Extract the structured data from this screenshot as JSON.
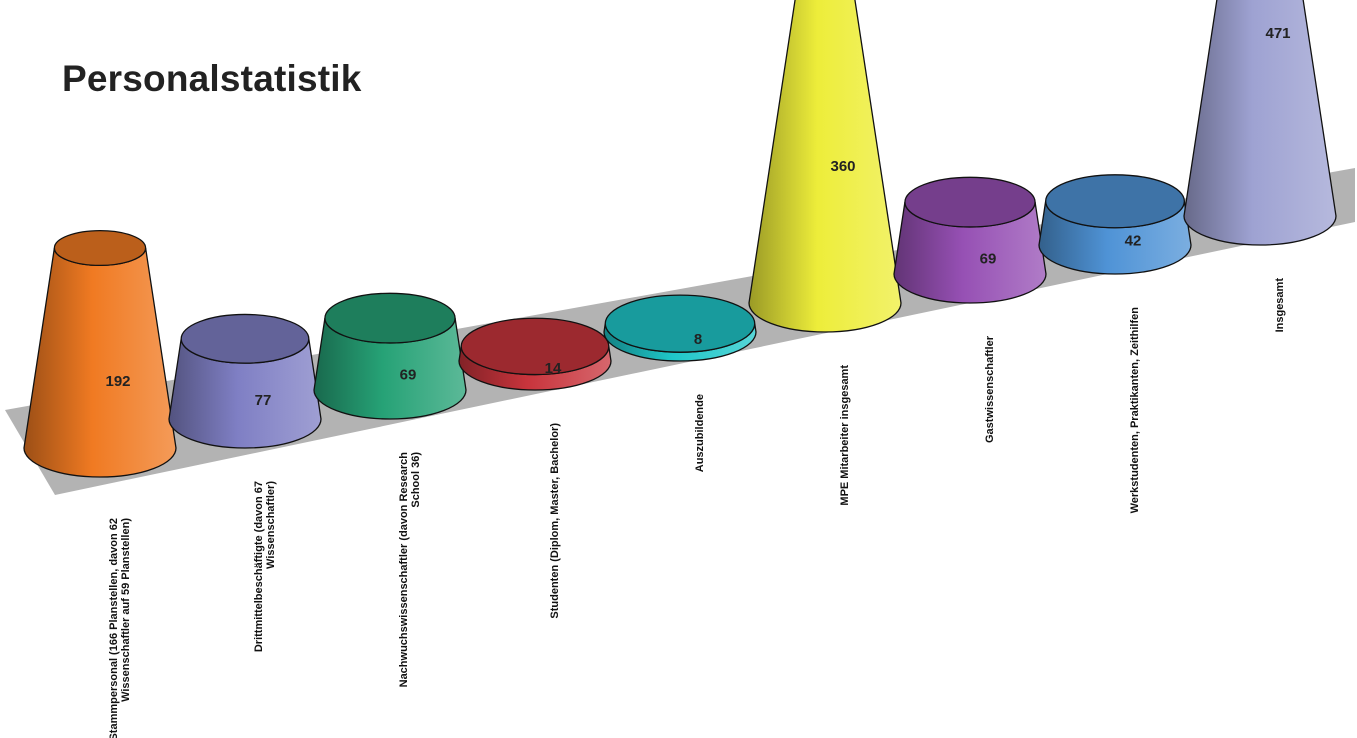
{
  "title": "Personalstatistik",
  "chart_data": {
    "type": "bar",
    "style": "3d-cone",
    "title": "Personalstatistik",
    "xlabel": "",
    "ylabel": "",
    "ylim": [
      0,
      480
    ],
    "grid": false,
    "legend": "none",
    "categories": [
      "Stammpersonal (166 Planstellen, davon 62 Wissenschaftler auf 59 Planstellen)",
      "Drittmittelbeschäftigte (davon 67 Wissenschaftler)",
      "Nachwuchswissenschaftler (davon Research School 36)",
      "Studenten (Diplom, Master, Bachelor)",
      "Auszubildende",
      "MPE Mitarbeiter insgesamt",
      "Gastwissenschaftler",
      "Werkstudenten, Praktikanten, Zeithilfen",
      "Insgesamt"
    ],
    "category_lines": [
      [
        "Stammpersonal (166 Planstellen, davon 62",
        "Wissenschaftler auf 59 Planstellen)"
      ],
      [
        "Drittmittelbeschäftigte (davon 67",
        "Wissenschaftler)"
      ],
      [
        "Nachwuchswissenschaftler (davon Research",
        "School 36)"
      ],
      [
        "Studenten (Diplom, Master, Bachelor)"
      ],
      [
        "Auszubildende"
      ],
      [
        "MPE Mitarbeiter insgesamt"
      ],
      [
        "Gastwissenschaftler"
      ],
      [
        "Werkstudenten, Praktikanten, Zeithilfen"
      ],
      [
        "Insgesamt"
      ]
    ],
    "values": [
      192,
      77,
      69,
      14,
      8,
      360,
      69,
      42,
      471
    ],
    "value_labels": [
      "192",
      "77",
      "69",
      "14",
      "8",
      "360",
      "69",
      "42",
      "471"
    ],
    "colors": [
      "#f07a22",
      "#7f7fc4",
      "#26a276",
      "#c8343c",
      "#1fc7c9",
      "#eded3a",
      "#9650b4",
      "#4f93d6",
      "#9ea2d2"
    ],
    "floor_color": "#b3b3b3"
  }
}
